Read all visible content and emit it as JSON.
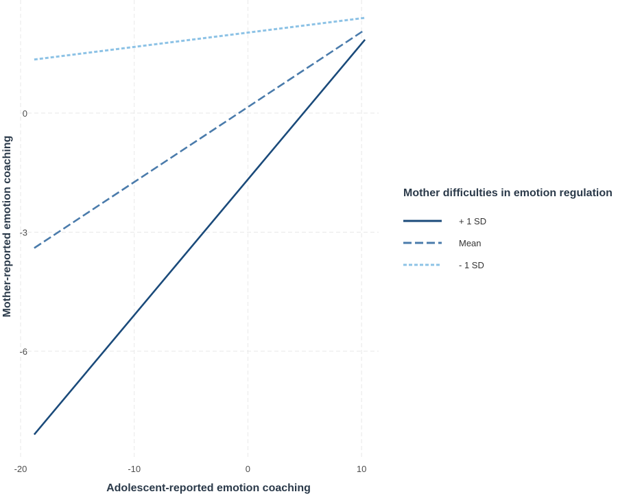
{
  "chart_data": {
    "type": "line",
    "xlabel": "Adolescent-reported emotion coaching",
    "ylabel": "Mother-reported emotion coaching",
    "xlim": [
      -20,
      11.5
    ],
    "ylim": [
      -8.7,
      2.85
    ],
    "x_ticks": [
      -20,
      -10,
      0,
      10
    ],
    "x_tick_labels": [
      "-20",
      "-10",
      "0",
      "10"
    ],
    "y_ticks": [
      0,
      -3,
      -6
    ],
    "y_tick_labels": [
      "0",
      "-3",
      "-6"
    ],
    "grid": true,
    "legend": {
      "title": "Mother difficulties in emotion regulation",
      "position": "right"
    },
    "series": [
      {
        "name": "+ 1 SD",
        "color": "#1a4a7a",
        "style": "solid",
        "x": [
          -18.8,
          10.3
        ],
        "y": [
          -8.1,
          1.85
        ]
      },
      {
        "name": "Mean",
        "color": "#4a7bab",
        "style": "dashed",
        "x": [
          -18.8,
          10.3
        ],
        "y": [
          -3.4,
          2.1
        ]
      },
      {
        "name": "- 1 SD",
        "color": "#8ec3e6",
        "style": "dotted",
        "x": [
          -18.8,
          10.3
        ],
        "y": [
          1.35,
          2.4
        ]
      }
    ]
  }
}
